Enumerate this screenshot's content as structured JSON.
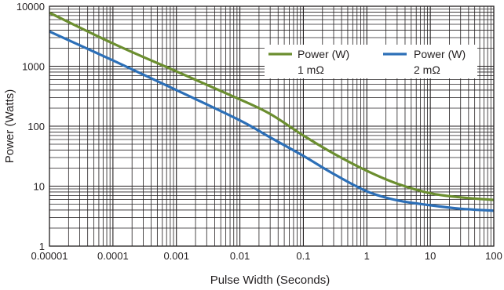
{
  "chart_data": {
    "type": "line",
    "xlabel": "Pulse Width (Seconds)",
    "ylabel": "Power (Watts)",
    "x_scale": "log",
    "y_scale": "log",
    "xlim": [
      1e-05,
      100
    ],
    "ylim": [
      1,
      10000
    ],
    "grid": true,
    "legend_position": "top-right",
    "x_ticks": [
      "0.00001",
      "0.0001",
      "0.001",
      "0.01",
      "0.1",
      "1",
      "10",
      "100"
    ],
    "y_ticks": [
      "1",
      "10",
      "100",
      "1000",
      "10000"
    ],
    "series": [
      {
        "name": "Power (W)",
        "name_line2": "1 mΩ",
        "color": "#6b8e2f",
        "x": [
          1e-05,
          0.0001,
          0.001,
          0.01,
          0.03,
          0.1,
          0.3,
          1,
          3,
          10,
          30,
          100
        ],
        "y": [
          7800,
          2400,
          820,
          280,
          160,
          70,
          35,
          18,
          11,
          7.6,
          6.5,
          5.9
        ]
      },
      {
        "name": "Power (W)",
        "name_line2": "2 mΩ",
        "color": "#2c6fb7",
        "x": [
          1e-05,
          0.0001,
          0.001,
          0.01,
          0.03,
          0.1,
          0.3,
          1,
          3,
          10,
          30,
          100
        ],
        "y": [
          3800,
          1250,
          400,
          125,
          65,
          32,
          16,
          8.2,
          5.8,
          4.8,
          4.2,
          3.9
        ]
      }
    ]
  }
}
